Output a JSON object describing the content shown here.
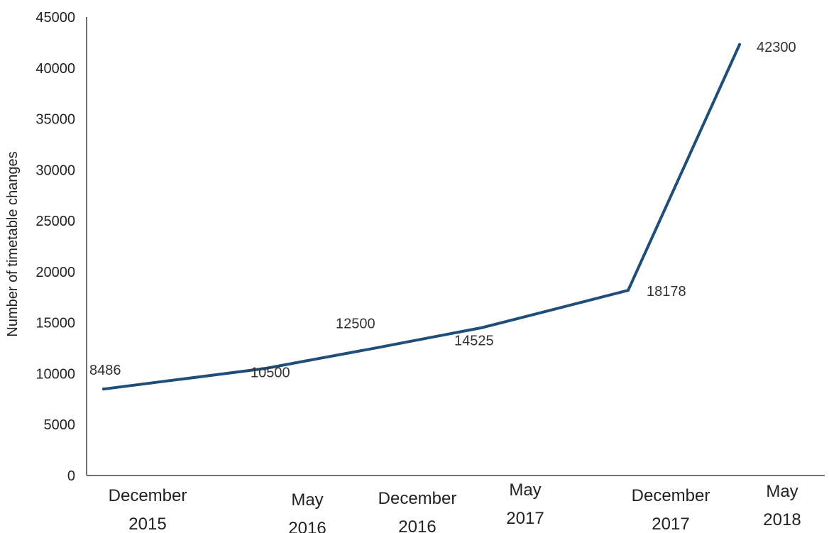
{
  "chart_data": {
    "type": "line",
    "title": "",
    "xlabel": "",
    "ylabel": "Number of timetable changes",
    "categories": [
      [
        "December",
        "2015"
      ],
      [
        "May",
        "2016"
      ],
      [
        "December",
        "2016"
      ],
      [
        "May",
        "2017"
      ],
      [
        "December",
        "2017"
      ],
      [
        "May",
        "2018"
      ]
    ],
    "values": [
      8486,
      10500,
      12500,
      14525,
      18178,
      42300
    ],
    "data_labels": [
      "8486",
      "10500",
      "12500",
      "14525",
      "18178",
      "42300"
    ],
    "yticks": [
      "0",
      "5000",
      "10000",
      "15000",
      "20000",
      "25000",
      "30000",
      "35000",
      "40000",
      "45000"
    ],
    "ylim": [
      0,
      45000
    ],
    "grid": false,
    "legend": "none",
    "line_color": "#1f4e79"
  }
}
